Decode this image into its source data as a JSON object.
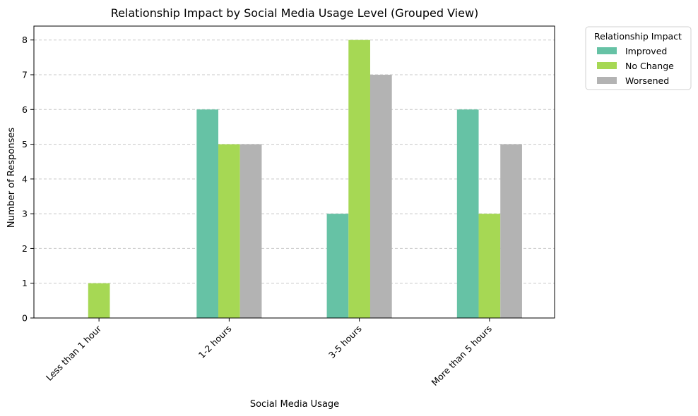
{
  "chart_data": {
    "type": "bar",
    "title": "Relationship Impact by Social Media Usage Level (Grouped View)",
    "xlabel": "Social Media Usage",
    "ylabel": "Number of Responses",
    "categories": [
      "Less than 1 hour",
      "1-2 hours",
      "3-5 hours",
      "More than 5 hours"
    ],
    "series": [
      {
        "name": "Improved",
        "values": [
          0,
          6,
          3,
          6
        ],
        "color": "#66c2a5"
      },
      {
        "name": "No Change",
        "values": [
          1,
          5,
          8,
          3
        ],
        "color": "#a6d854"
      },
      {
        "name": "Worsened",
        "values": [
          0,
          5,
          7,
          5
        ],
        "color": "#b3b3b3"
      }
    ],
    "ylim": [
      0,
      8.4
    ],
    "yticks": [
      0,
      1,
      2,
      3,
      4,
      5,
      6,
      7,
      8
    ],
    "grid": "y-dashed",
    "legend": {
      "title": "Relationship Impact",
      "placement": "outside-top-right"
    }
  }
}
